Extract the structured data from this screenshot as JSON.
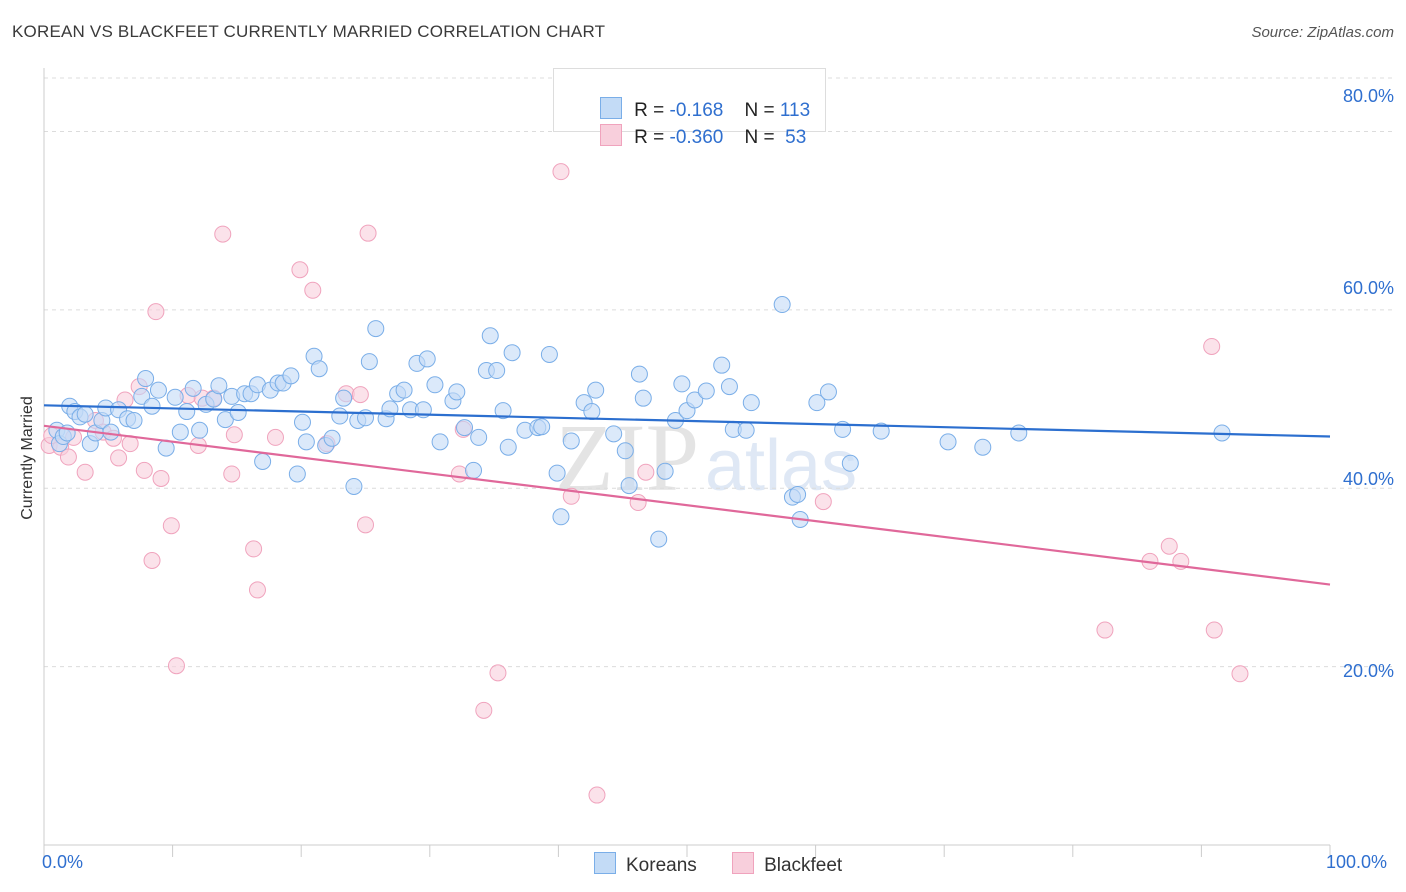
{
  "title": "KOREAN VS BLACKFEET CURRENTLY MARRIED CORRELATION CHART",
  "source": "Source: ZipAtlas.com",
  "watermark": {
    "zip": "ZIP",
    "atlas": "atlas"
  },
  "colors": {
    "korean": "#7aaee8",
    "korean_fill": "#c3dbf6",
    "korean_line": "#2c6fcf",
    "blackfeet": "#f0a3bd",
    "blackfeet_fill": "#f8cfdc",
    "blackfeet_line": "#e0689a",
    "axis_text": "#2f6fcf",
    "grid": "#dcdcdc"
  },
  "legend": {
    "rows": [
      {
        "r_label": "R = ",
        "r_value": "-0.168",
        "n_label": "N = ",
        "n_value": "113"
      },
      {
        "r_label": "R = ",
        "r_value": "-0.360",
        "n_label": "N = ",
        "n_value": " 53"
      }
    ]
  },
  "bottom_legend": {
    "korean": "Koreans",
    "blackfeet": "Blackfeet"
  },
  "chart_data": {
    "type": "scatter",
    "xlabel": "",
    "ylabel": "Currently Married",
    "xlim": [
      0,
      100
    ],
    "ylim": [
      0,
      86
    ],
    "x_tick_labels": [
      "0.0%",
      "100.0%"
    ],
    "y_ticks": [
      20,
      40,
      60,
      80
    ],
    "y_tick_labels": [
      "20.0%",
      "40.0%",
      "60.0%",
      "80.0%"
    ],
    "grid": "horizontal dashed",
    "legend_position": "top-center",
    "series": [
      {
        "name": "Koreans",
        "trend": {
          "x": [
            0,
            100
          ],
          "y": [
            49.3,
            45.8
          ]
        },
        "points": [
          [
            1.0,
            46.5
          ],
          [
            1.2,
            45.0
          ],
          [
            1.5,
            45.8
          ],
          [
            1.8,
            46.2
          ],
          [
            2.0,
            49.2
          ],
          [
            2.4,
            48.6
          ],
          [
            2.8,
            48.0
          ],
          [
            3.2,
            48.3
          ],
          [
            3.6,
            45.0
          ],
          [
            4.0,
            46.2
          ],
          [
            4.5,
            47.6
          ],
          [
            4.8,
            49.0
          ],
          [
            5.2,
            46.3
          ],
          [
            5.8,
            48.8
          ],
          [
            6.5,
            47.8
          ],
          [
            7.0,
            47.6
          ],
          [
            7.6,
            50.3
          ],
          [
            7.9,
            52.3
          ],
          [
            8.4,
            49.2
          ],
          [
            8.9,
            51.0
          ],
          [
            9.5,
            44.5
          ],
          [
            10.2,
            50.2
          ],
          [
            10.6,
            46.3
          ],
          [
            11.1,
            48.6
          ],
          [
            11.6,
            51.2
          ],
          [
            12.1,
            46.5
          ],
          [
            12.6,
            49.4
          ],
          [
            13.2,
            50.0
          ],
          [
            13.6,
            51.5
          ],
          [
            14.1,
            47.7
          ],
          [
            14.6,
            50.3
          ],
          [
            15.1,
            48.5
          ],
          [
            15.6,
            50.6
          ],
          [
            16.1,
            50.6
          ],
          [
            16.6,
            51.6
          ],
          [
            17.0,
            43.0
          ],
          [
            17.6,
            51.0
          ],
          [
            18.2,
            51.8
          ],
          [
            18.6,
            51.8
          ],
          [
            19.2,
            52.6
          ],
          [
            19.7,
            41.6
          ],
          [
            20.1,
            47.4
          ],
          [
            20.4,
            45.2
          ],
          [
            21.0,
            54.8
          ],
          [
            21.4,
            53.4
          ],
          [
            21.9,
            44.8
          ],
          [
            22.4,
            45.6
          ],
          [
            23.0,
            48.1
          ],
          [
            23.3,
            50.1
          ],
          [
            24.1,
            40.2
          ],
          [
            24.4,
            47.6
          ],
          [
            25.0,
            47.9
          ],
          [
            25.3,
            54.2
          ],
          [
            25.8,
            57.9
          ],
          [
            26.6,
            47.8
          ],
          [
            26.9,
            48.9
          ],
          [
            27.5,
            50.6
          ],
          [
            28.0,
            51.0
          ],
          [
            28.5,
            48.8
          ],
          [
            29.0,
            54.0
          ],
          [
            29.5,
            48.8
          ],
          [
            29.8,
            54.5
          ],
          [
            30.4,
            51.6
          ],
          [
            30.8,
            45.2
          ],
          [
            31.8,
            49.8
          ],
          [
            32.1,
            50.8
          ],
          [
            32.7,
            46.8
          ],
          [
            33.4,
            42.0
          ],
          [
            33.8,
            45.7
          ],
          [
            34.4,
            53.2
          ],
          [
            34.7,
            57.1
          ],
          [
            35.2,
            53.2
          ],
          [
            35.7,
            48.7
          ],
          [
            36.1,
            44.6
          ],
          [
            36.4,
            55.2
          ],
          [
            37.4,
            46.5
          ],
          [
            38.4,
            46.8
          ],
          [
            38.7,
            46.9
          ],
          [
            39.3,
            55.0
          ],
          [
            39.9,
            41.7
          ],
          [
            40.2,
            36.8
          ],
          [
            41.0,
            45.3
          ],
          [
            42.0,
            49.6
          ],
          [
            42.6,
            48.6
          ],
          [
            42.9,
            51.0
          ],
          [
            44.3,
            46.1
          ],
          [
            45.2,
            44.2
          ],
          [
            45.5,
            40.3
          ],
          [
            46.3,
            52.8
          ],
          [
            46.6,
            50.1
          ],
          [
            47.8,
            34.3
          ],
          [
            48.3,
            41.9
          ],
          [
            49.1,
            47.6
          ],
          [
            49.6,
            51.7
          ],
          [
            50.0,
            48.7
          ],
          [
            50.6,
            49.9
          ],
          [
            51.5,
            50.9
          ],
          [
            52.7,
            53.8
          ],
          [
            53.3,
            51.4
          ],
          [
            53.6,
            46.6
          ],
          [
            54.6,
            46.5
          ],
          [
            55.0,
            49.6
          ],
          [
            57.4,
            60.6
          ],
          [
            58.2,
            39.0
          ],
          [
            58.6,
            39.3
          ],
          [
            58.8,
            36.5
          ],
          [
            60.1,
            49.6
          ],
          [
            61.0,
            50.8
          ],
          [
            62.1,
            46.6
          ],
          [
            62.7,
            42.8
          ],
          [
            65.1,
            46.4
          ],
          [
            70.3,
            45.2
          ],
          [
            75.8,
            46.2
          ],
          [
            91.6,
            46.2
          ],
          [
            73.0,
            44.6
          ]
        ]
      },
      {
        "name": "Blackfeet",
        "trend": {
          "x": [
            0,
            100
          ],
          "y": [
            47.0,
            29.2
          ]
        },
        "points": [
          [
            0.4,
            44.8
          ],
          [
            1.3,
            44.6
          ],
          [
            1.9,
            43.5
          ],
          [
            2.3,
            45.7
          ],
          [
            3.2,
            41.8
          ],
          [
            4.0,
            47.6
          ],
          [
            4.6,
            46.3
          ],
          [
            5.4,
            45.6
          ],
          [
            5.8,
            43.4
          ],
          [
            6.3,
            49.9
          ],
          [
            6.7,
            45.0
          ],
          [
            7.4,
            51.4
          ],
          [
            7.8,
            42.0
          ],
          [
            8.4,
            31.9
          ],
          [
            8.7,
            59.8
          ],
          [
            9.1,
            41.1
          ],
          [
            9.9,
            35.8
          ],
          [
            10.3,
            20.1
          ],
          [
            11.2,
            50.4
          ],
          [
            12.0,
            44.8
          ],
          [
            12.3,
            50.1
          ],
          [
            13.2,
            50.1
          ],
          [
            13.9,
            68.5
          ],
          [
            14.6,
            41.6
          ],
          [
            14.8,
            46.0
          ],
          [
            16.3,
            33.2
          ],
          [
            16.6,
            28.6
          ],
          [
            18.0,
            45.7
          ],
          [
            19.9,
            64.5
          ],
          [
            20.9,
            62.2
          ],
          [
            22.0,
            45.0
          ],
          [
            23.5,
            50.6
          ],
          [
            24.6,
            50.5
          ],
          [
            25.2,
            68.6
          ],
          [
            25.0,
            35.9
          ],
          [
            32.3,
            41.6
          ],
          [
            32.6,
            46.6
          ],
          [
            34.2,
            15.1
          ],
          [
            35.3,
            19.3
          ],
          [
            40.2,
            75.5
          ],
          [
            41.0,
            39.1
          ],
          [
            43.0,
            5.6
          ],
          [
            46.2,
            38.4
          ],
          [
            46.8,
            41.8
          ],
          [
            60.6,
            38.5
          ],
          [
            86.0,
            31.8
          ],
          [
            87.5,
            33.5
          ],
          [
            82.5,
            24.1
          ],
          [
            88.4,
            31.8
          ],
          [
            90.8,
            55.9
          ],
          [
            91.0,
            24.1
          ],
          [
            93.0,
            19.2
          ],
          [
            0.6,
            45.9
          ]
        ]
      }
    ]
  }
}
